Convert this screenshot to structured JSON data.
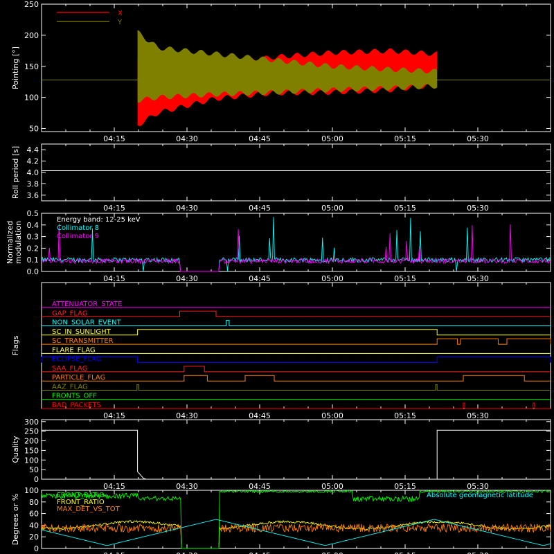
{
  "chart_data": [
    {
      "type": "line",
      "ylabel": "Pointing [°]",
      "ylim": [
        45,
        250
      ],
      "yticks": [
        50,
        100,
        150,
        200,
        250
      ],
      "xticks": [
        "04:15",
        "04:30",
        "04:45",
        "05:00",
        "05:15",
        "05:30"
      ],
      "xlim_min": [
        4.0,
        5.75
      ],
      "legend_placement": "top-left",
      "series": [
        {
          "name": "X",
          "color": "#ff0000",
          "envelope_hi": [
            [
              4.33,
              162
            ],
            [
              4.4,
              150
            ],
            [
              4.6,
              152
            ],
            [
              4.8,
              165
            ],
            [
              5.0,
              172
            ],
            [
              5.2,
              175
            ],
            [
              5.35,
              170
            ]
          ],
          "envelope_lo": [
            [
              4.33,
              55
            ],
            [
              4.4,
              75
            ],
            [
              4.6,
              98
            ],
            [
              4.8,
              107
            ],
            [
              5.0,
              108
            ],
            [
              5.2,
              112
            ],
            [
              5.35,
              120
            ]
          ]
        },
        {
          "name": "Y",
          "color": "#808000",
          "envelope_hi": [
            [
              4.33,
              205
            ],
            [
              4.4,
              180
            ],
            [
              4.6,
              170
            ],
            [
              4.8,
              160
            ],
            [
              5.0,
              150
            ],
            [
              5.2,
              145
            ],
            [
              5.35,
              142
            ]
          ],
          "envelope_lo": [
            [
              4.33,
              95
            ],
            [
              4.4,
              100
            ],
            [
              4.6,
              105
            ],
            [
              4.8,
              108
            ],
            [
              5.0,
              112
            ],
            [
              5.2,
              115
            ],
            [
              5.35,
              118
            ]
          ]
        }
      ],
      "baseline": 128
    },
    {
      "type": "line",
      "ylabel": "Roll period [s]",
      "ylim": [
        3.5,
        4.5
      ],
      "yticks": [
        3.6,
        3.8,
        4.0,
        4.2,
        4.4
      ],
      "xticks": [
        "04:15",
        "04:30",
        "04:45",
        "05:00",
        "05:15",
        "05:30"
      ],
      "series": [
        {
          "name": "",
          "color": "#ffffff",
          "value": 4.03
        }
      ]
    },
    {
      "type": "line",
      "ylabel": "Normalized modulation",
      "ylim": [
        0,
        0.5
      ],
      "yticks": [
        0.0,
        0.1,
        0.2,
        0.3,
        0.4,
        0.5
      ],
      "xticks": [
        "04:15",
        "04:30",
        "04:45",
        "05:00",
        "05:15",
        "05:30"
      ],
      "annotation": "Energy band: 12-25 keV",
      "series": [
        {
          "name": "Collimator 8",
          "color": "#00ffff",
          "base": 0.1
        },
        {
          "name": "Collimator 9",
          "color": "#ff00ff",
          "base": 0.09
        }
      ],
      "gaps": [
        [
          4.475,
          4.61
        ]
      ]
    },
    {
      "type": "line",
      "ylabel": "Flags",
      "xticks": [
        "04:15",
        "04:30",
        "04:45",
        "05:00",
        "05:15",
        "05:30"
      ],
      "flags": [
        {
          "name": "ATTENUATOR_STATE",
          "color": "#ff00ff",
          "on": []
        },
        {
          "name": "GAP_FLAG",
          "color": "#ff2020",
          "on": [
            [
              4.475,
              4.6
            ]
          ]
        },
        {
          "name": "NON_SOLAR_EVENT",
          "color": "#00ffff",
          "on": [
            [
              4.635,
              4.645
            ]
          ]
        },
        {
          "name": "SC_IN_SUNLIGHT",
          "color": "#ffff00",
          "on": [
            [
              4.33,
              5.36
            ]
          ]
        },
        {
          "name": "SC_TRANSMITTER",
          "color": "#ff8000",
          "on": [
            [
              5.36,
              5.43
            ],
            [
              5.44,
              5.57
            ],
            [
              5.6,
              5.75
            ]
          ]
        },
        {
          "name": "FLARE_FLAG",
          "color": "#ffff60",
          "on": []
        },
        {
          "name": "ECLIPSE_FLAG",
          "color": "#0000ff",
          "on": [
            [
              4.0,
              4.33
            ],
            [
              5.36,
              5.75
            ]
          ]
        },
        {
          "name": "SAA_FLAG",
          "color": "#ff2020",
          "on": [
            [
              4.49,
              4.56
            ]
          ]
        },
        {
          "name": "PARTICLE_FLAG",
          "color": "#ff8000",
          "on": [
            [
              4.49,
              4.57
            ],
            [
              4.7,
              4.8
            ],
            [
              5.45,
              5.66
            ]
          ]
        },
        {
          "name": "AAZ_FLAG",
          "color": "#808000",
          "on": [
            [
              4.328,
              4.334
            ],
            [
              5.355,
              5.36
            ]
          ]
        },
        {
          "name": "FRONTS_OFF",
          "color": "#00ff00",
          "on": []
        },
        {
          "name": "BAD_PACKETS",
          "color": "#ff0000",
          "on": [
            [
              5.45,
              5.455
            ],
            [
              5.69,
              5.695
            ]
          ]
        }
      ]
    },
    {
      "type": "line",
      "ylabel": "Quality",
      "ylim": [
        0,
        310
      ],
      "yticks": [
        0,
        50,
        100,
        150,
        200,
        250,
        300
      ],
      "xticks": [
        "04:15",
        "04:30",
        "04:45",
        "05:00",
        "05:15",
        "05:30"
      ],
      "series": [
        {
          "name": "",
          "color": "#ffffff",
          "steps": [
            [
              4.0,
              255
            ],
            [
              4.33,
              255
            ],
            [
              4.33,
              40
            ],
            [
              4.35,
              5
            ],
            [
              4.36,
              0
            ],
            [
              5.36,
              0
            ],
            [
              5.36,
              255
            ],
            [
              5.75,
              255
            ]
          ]
        }
      ]
    },
    {
      "type": "line",
      "ylabel": "Degrees or %",
      "ylim": [
        0,
        100
      ],
      "yticks": [
        0,
        20,
        40,
        60,
        80,
        100
      ],
      "xticks": [
        "04:15",
        "04:30",
        "04:45",
        "05:00",
        "05:15",
        "05:30"
      ],
      "series": [
        {
          "name": "FRONT_RATIO",
          "color": "#00ff00"
        },
        {
          "name": "FRONT_RATIO",
          "color": "#ffff00"
        },
        {
          "name": "MAX_DET_VS_TOT",
          "color": "#ff8000"
        },
        {
          "name": "Absolute geomagnetic latitude",
          "color": "#00ffff"
        }
      ]
    }
  ]
}
